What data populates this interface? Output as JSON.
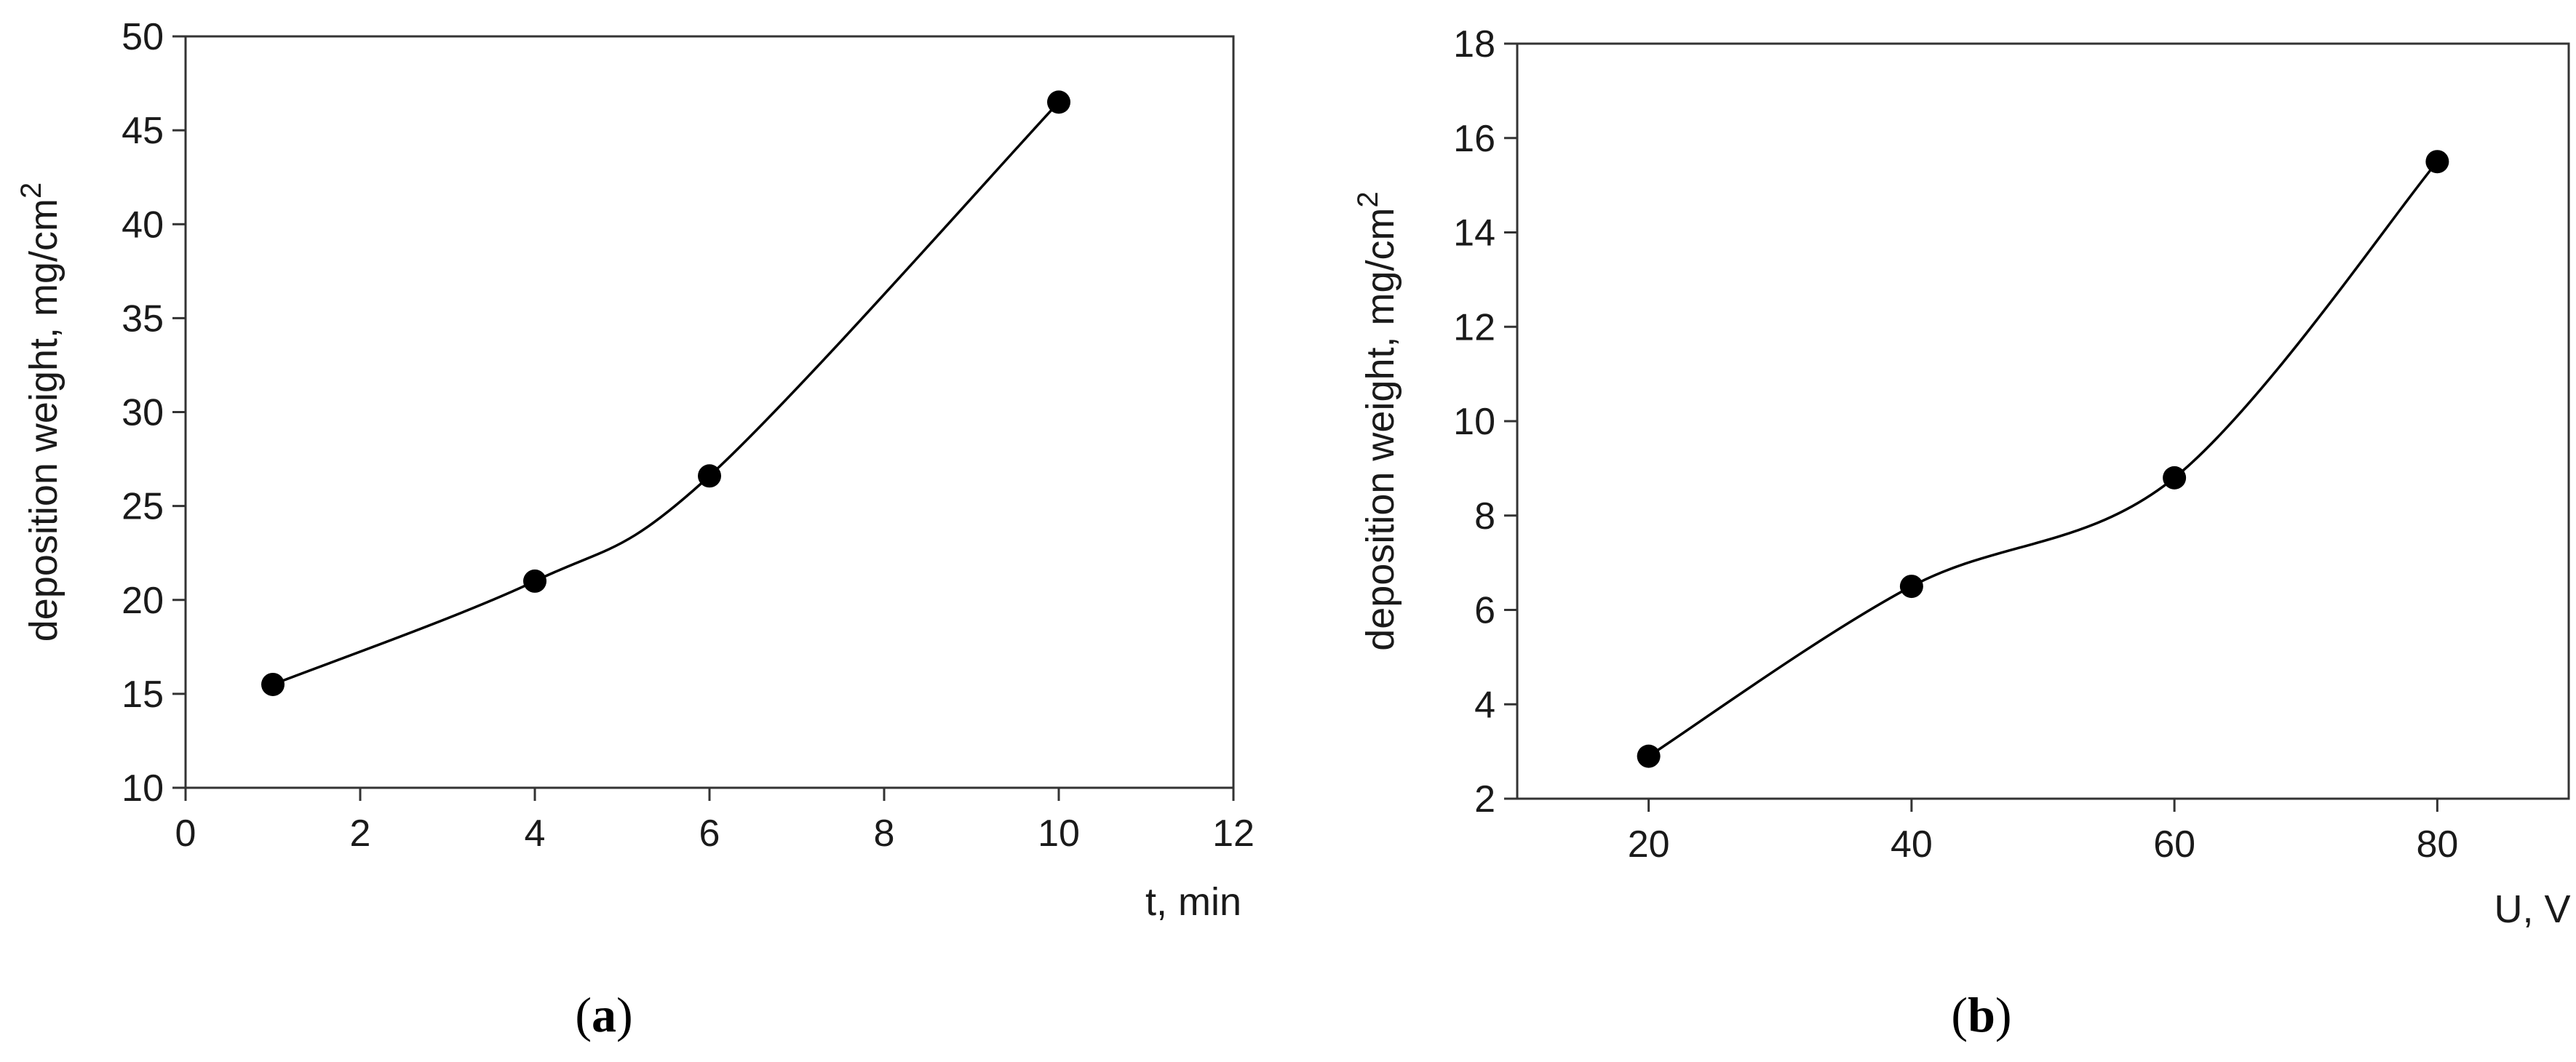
{
  "chart_data": [
    {
      "type": "line",
      "panel_label": "a",
      "xlabel": "t, min",
      "ylabel": "deposition weight, mg/cm",
      "ylabel_sup": "2",
      "xlim": [
        0,
        12
      ],
      "ylim": [
        10,
        50
      ],
      "xticks": [
        "0",
        "2",
        "4",
        "6",
        "8",
        "10",
        "12"
      ],
      "yticks": [
        "10",
        "15",
        "20",
        "25",
        "30",
        "35",
        "40",
        "45",
        "50"
      ],
      "grid": false,
      "series": [
        {
          "x": [
            1,
            4,
            6,
            10
          ],
          "y": [
            15.5,
            21.0,
            26.6,
            46.5
          ],
          "marker": "circle",
          "color": "#000000"
        }
      ]
    },
    {
      "type": "line",
      "panel_label": "b",
      "xlabel": "U, V",
      "ylabel": "deposition weight, mg/cm",
      "ylabel_sup": "2",
      "xlim": [
        10,
        90
      ],
      "ylim": [
        2,
        18
      ],
      "xticks": [
        "20",
        "40",
        "60",
        "80"
      ],
      "yticks": [
        "2",
        "4",
        "6",
        "8",
        "10",
        "12",
        "14",
        "16",
        "18"
      ],
      "grid": false,
      "series": [
        {
          "x": [
            20,
            40,
            60,
            80
          ],
          "y": [
            2.9,
            6.5,
            8.8,
            15.5
          ],
          "marker": "circle",
          "color": "#000000"
        }
      ]
    }
  ]
}
